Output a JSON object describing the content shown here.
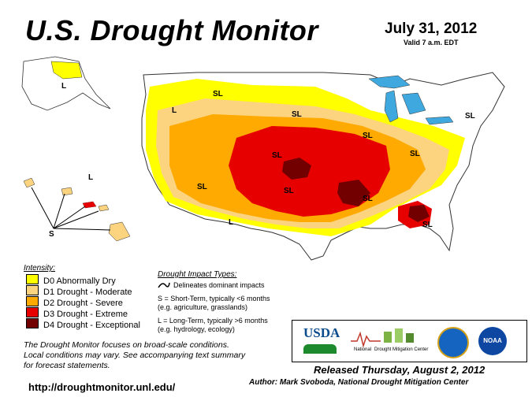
{
  "title": "U.S. Drought Monitor",
  "date": "July 31, 2012",
  "valid": "Valid 7 a.m. EDT",
  "legend": {
    "title": "Intensity:",
    "items": [
      {
        "label": "D0 Abnormally Dry",
        "color": "#ffff00"
      },
      {
        "label": "D1 Drought - Moderate",
        "color": "#fcd37f"
      },
      {
        "label": "D2 Drought - Severe",
        "color": "#ffaa00"
      },
      {
        "label": "D3 Drought - Extreme",
        "color": "#e60000"
      },
      {
        "label": "D4 Drought - Exceptional",
        "color": "#730000"
      }
    ]
  },
  "impact": {
    "title": "Drought Impact Types:",
    "delineates": "Delineates dominant impacts",
    "short_line1": "S = Short-Term, typically <6 months",
    "short_line2": "(e.g. agriculture, grasslands)",
    "long_line1": "L = Long-Term, typically >6 months",
    "long_line2": "(e.g. hydrology, ecology)"
  },
  "note": {
    "line1": "The Drought Monitor focuses on broad-scale conditions.",
    "line2": "Local conditions may vary. See accompanying text summary",
    "line3": "for forecast statements."
  },
  "logos": {
    "usda": "USDA",
    "ndmc_line1": "National",
    "ndmc_line2": "Drought Mitigation Center",
    "noaa": "NOAA"
  },
  "released": "Released Thursday, August 2, 2012",
  "author": "Author: Mark Svoboda, National Drought Mitigation Center",
  "url": "http://droughtmonitor.unl.edu/",
  "map_labels": {
    "sl": "SL",
    "l": "L",
    "s": "S"
  }
}
